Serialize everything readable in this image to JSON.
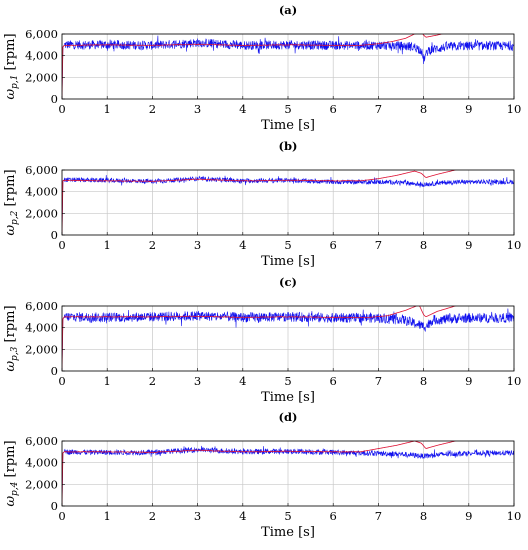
{
  "chart_data": [
    {
      "type": "line",
      "title": "(a)",
      "xlabel": "Time [s]",
      "ylabel": "ω_p,1 [rpm]",
      "ylabel_parts": {
        "symbol": "ω",
        "subscript": "p,1",
        "unit": " [rpm]"
      },
      "xlim": [
        0,
        10
      ],
      "ylim": [
        0,
        6000
      ],
      "xticks": [
        0,
        1,
        2,
        3,
        4,
        5,
        6,
        7,
        8,
        9,
        10
      ],
      "yticks": [
        0,
        2000,
        4000,
        6000
      ],
      "ytick_labels": [
        "0",
        "2,000",
        "4,000",
        "6,000"
      ],
      "grid": true,
      "series": [
        {
          "color": "#1010ee",
          "style": "noisy",
          "x": [
            0,
            0.02,
            0.05,
            1,
            2,
            3,
            4,
            5,
            6,
            7,
            7.5,
            7.8,
            7.95,
            8.0,
            8.1,
            8.5,
            9,
            9.5,
            10
          ],
          "y": [
            0,
            4800,
            5000,
            5000,
            4950,
            5200,
            4950,
            5000,
            4950,
            4950,
            4900,
            4800,
            4500,
            3600,
            4500,
            4800,
            4900,
            4900,
            4900
          ],
          "noise": 700
        },
        {
          "color": "#dd1133",
          "style": "smooth",
          "x": [
            0,
            0.02,
            0.05,
            1,
            2,
            3,
            4,
            5,
            6,
            6.6,
            7,
            7.3,
            7.6,
            7.8,
            7.95,
            8.0,
            8.05,
            8.3,
            8.6,
            8.9,
            9.0,
            10
          ],
          "y": [
            0,
            4800,
            4950,
            5000,
            4950,
            5050,
            4950,
            5000,
            4950,
            4950,
            5100,
            5300,
            5600,
            6000,
            6200,
            5900,
            5700,
            5900,
            6200,
            6500,
            6500,
            6500
          ]
        }
      ]
    },
    {
      "type": "line",
      "title": "(b)",
      "xlabel": "Time [s]",
      "ylabel": "ω_p,2 [rpm]",
      "ylabel_parts": {
        "symbol": "ω",
        "subscript": "p,2",
        "unit": " [rpm]"
      },
      "xlim": [
        0,
        10
      ],
      "ylim": [
        0,
        6000
      ],
      "xticks": [
        0,
        1,
        2,
        3,
        4,
        5,
        6,
        7,
        8,
        9,
        10
      ],
      "yticks": [
        0,
        2000,
        4000,
        6000
      ],
      "ytick_labels": [
        "0",
        "2,000",
        "4,000",
        "6,000"
      ],
      "grid": true,
      "series": [
        {
          "color": "#1010ee",
          "style": "noisy",
          "x": [
            0,
            0.02,
            0.05,
            1,
            2,
            3,
            4,
            5,
            6,
            7,
            7.5,
            8.0,
            8.5,
            9,
            10
          ],
          "y": [
            0,
            5000,
            5100,
            5050,
            4950,
            5200,
            5000,
            5050,
            4900,
            4900,
            4850,
            4650,
            4850,
            4900,
            4900
          ],
          "noise": 350
        },
        {
          "color": "#dd1133",
          "style": "smooth",
          "x": [
            0,
            0.02,
            0.05,
            1,
            2,
            3,
            4,
            5,
            6,
            6.6,
            7,
            7.4,
            7.8,
            7.95,
            8.05,
            8.3,
            8.7,
            8.9,
            9.0,
            10
          ],
          "y": [
            0,
            5000,
            5050,
            5000,
            4950,
            5150,
            5000,
            5050,
            5000,
            5000,
            5200,
            5500,
            5900,
            5700,
            5300,
            5600,
            6000,
            6300,
            6500,
            6500
          ]
        }
      ]
    },
    {
      "type": "line",
      "title": "(c)",
      "xlabel": "Time [s]",
      "ylabel": "ω_p,3 [rpm]",
      "ylabel_parts": {
        "symbol": "ω",
        "subscript": "p,3",
        "unit": " [rpm]"
      },
      "xlim": [
        0,
        10
      ],
      "ylim": [
        0,
        6000
      ],
      "xticks": [
        0,
        1,
        2,
        3,
        4,
        5,
        6,
        7,
        8,
        9,
        10
      ],
      "yticks": [
        0,
        2000,
        4000,
        6000
      ],
      "ytick_labels": [
        "0",
        "2,000",
        "4,000",
        "6,000"
      ],
      "grid": true,
      "series": [
        {
          "color": "#1010ee",
          "style": "noisy",
          "x": [
            0,
            0.02,
            0.05,
            1,
            2,
            3,
            4,
            5,
            6,
            7,
            7.5,
            7.95,
            8.05,
            8.2,
            8.6,
            9,
            10
          ],
          "y": [
            0,
            4800,
            5000,
            4950,
            5000,
            5100,
            4950,
            5000,
            4900,
            4900,
            4800,
            4200,
            4100,
            4700,
            4800,
            4900,
            4900
          ],
          "noise": 750
        },
        {
          "color": "#dd1133",
          "style": "smooth",
          "x": [
            0,
            0.02,
            0.05,
            1,
            2,
            3,
            4,
            5,
            6,
            6.8,
            7.2,
            7.6,
            7.9,
            8.0,
            8.05,
            8.3,
            8.7,
            8.9,
            9.0,
            10
          ],
          "y": [
            0,
            4800,
            5000,
            5000,
            5000,
            5050,
            4950,
            5000,
            4950,
            4950,
            5100,
            5600,
            6100,
            5200,
            5000,
            5500,
            6000,
            6300,
            6500,
            6500
          ]
        }
      ]
    },
    {
      "type": "line",
      "title": "(d)",
      "xlabel": "Time [s]",
      "ylabel": "ω_p,4 [rpm]",
      "ylabel_parts": {
        "symbol": "ω",
        "subscript": "p,4",
        "unit": " [rpm]"
      },
      "xlim": [
        0,
        10
      ],
      "ylim": [
        0,
        6000
      ],
      "xticks": [
        0,
        1,
        2,
        3,
        4,
        5,
        6,
        7,
        8,
        9,
        10
      ],
      "yticks": [
        0,
        2000,
        4000,
        6000
      ],
      "ytick_labels": [
        "0",
        "2,000",
        "4,000",
        "6,000"
      ],
      "grid": true,
      "series": [
        {
          "color": "#1010ee",
          "style": "noisy",
          "x": [
            0,
            0.02,
            0.05,
            1,
            2,
            3,
            4,
            5,
            6,
            7,
            7.5,
            8.0,
            8.5,
            9,
            10
          ],
          "y": [
            0,
            4900,
            5000,
            4950,
            4950,
            5200,
            5000,
            5050,
            4950,
            4850,
            4800,
            4600,
            4800,
            4900,
            4900
          ],
          "noise": 400
        },
        {
          "color": "#dd1133",
          "style": "smooth",
          "x": [
            0,
            0.02,
            0.05,
            1,
            2,
            3,
            4,
            5,
            6,
            6.6,
            7,
            7.4,
            7.8,
            7.95,
            8.05,
            8.3,
            8.7,
            8.9,
            9.0,
            10
          ],
          "y": [
            0,
            4900,
            5000,
            5000,
            4950,
            5150,
            5000,
            5050,
            5000,
            5000,
            5300,
            5600,
            6000,
            5800,
            5300,
            5600,
            6000,
            6300,
            6500,
            6500
          ]
        }
      ]
    }
  ]
}
